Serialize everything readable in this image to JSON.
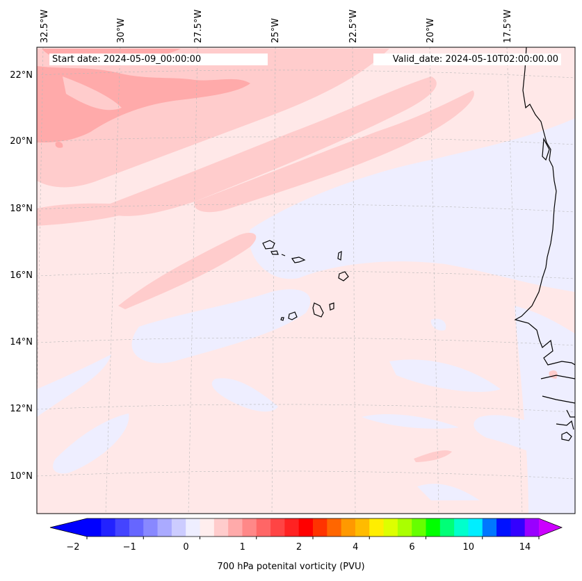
{
  "header": {
    "start_date": "Start date: 2024-05-09_00:00:00",
    "valid_date": "Valid_date: 2024-05-10T02:00:00.00"
  },
  "map": {
    "projection_grid": "dashed-gray",
    "lon_labels": [
      "32.5°W",
      "30°W",
      "27.5°W",
      "25°W",
      "22.5°W",
      "20°W",
      "17.5°W"
    ],
    "lat_labels": [
      "22°N",
      "20°N",
      "18°N",
      "16°N",
      "14°N",
      "12°N",
      "10°N"
    ],
    "features": [
      "Cape Verde islands",
      "West African coastline"
    ]
  },
  "colorbar": {
    "label": "700 hPa potenital vorticity (PVU)",
    "tick_labels": [
      "−2",
      "−1",
      "0",
      "1",
      "2",
      "4",
      "6",
      "10",
      "14"
    ],
    "colors": [
      "#0000ff",
      "#2222ff",
      "#4444ff",
      "#6666ff",
      "#8888ff",
      "#aaaaff",
      "#ccccff",
      "#eeeeff",
      "#ffeeee",
      "#ffcccc",
      "#ffaaaa",
      "#ff8888",
      "#ff6666",
      "#ff4444",
      "#ff2222",
      "#ff0000",
      "#ff3300",
      "#ff6600",
      "#ff9900",
      "#ffbb00",
      "#ffee00",
      "#ddff00",
      "#aaff00",
      "#66ff00",
      "#00ff00",
      "#00ff77",
      "#00ffcc",
      "#00eeff",
      "#0077ff",
      "#0011ff",
      "#3300ff",
      "#9900ff"
    ],
    "extend_low_color": "#0000ff",
    "extend_high_color": "#cc00ff"
  },
  "field_colors": {
    "background": "#ffe8e8",
    "light_red": "#ffcccc",
    "mid_red": "#ffaaaa",
    "light_blue": "#eeeeff"
  }
}
